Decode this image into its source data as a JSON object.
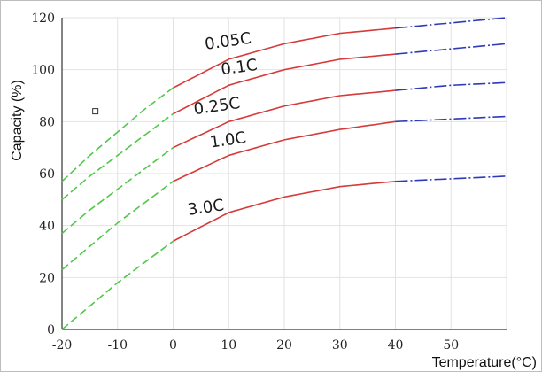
{
  "chart_data": {
    "type": "line",
    "title": "",
    "xlabel": "Temperature(°C)",
    "ylabel": "Capacity (%)",
    "xlim": [
      -20,
      60
    ],
    "ylim": [
      0,
      120
    ],
    "x_ticks": [
      "-20",
      "-10",
      "0",
      "10",
      "20",
      "30",
      "40",
      "50"
    ],
    "y_ticks": [
      "0",
      "20",
      "40",
      "60",
      "80",
      "100",
      "120"
    ],
    "grid": true,
    "segment_colors": {
      "cold": "#52c84a",
      "mid": "#d63a3a",
      "warm": "#2e3ab8"
    },
    "series": [
      {
        "name": "0.05C",
        "x": [
          -20,
          -15,
          -10,
          -5,
          0,
          10,
          20,
          30,
          40,
          50,
          60
        ],
        "y": [
          57,
          67,
          76,
          85,
          93,
          104,
          110,
          114,
          116,
          118,
          120
        ]
      },
      {
        "name": "0.1C",
        "x": [
          -20,
          -15,
          -10,
          -5,
          0,
          10,
          20,
          30,
          40,
          50,
          60
        ],
        "y": [
          50,
          59,
          67,
          75,
          83,
          94,
          100,
          104,
          106,
          108,
          110
        ]
      },
      {
        "name": "0.25C",
        "x": [
          -20,
          -15,
          -10,
          -5,
          0,
          10,
          20,
          30,
          40,
          50,
          60
        ],
        "y": [
          37,
          46,
          54,
          62,
          70,
          80,
          86,
          90,
          92,
          94,
          95
        ]
      },
      {
        "name": "1.0C",
        "x": [
          -20,
          -15,
          -10,
          -5,
          0,
          10,
          20,
          30,
          40,
          50,
          60
        ],
        "y": [
          23,
          32,
          41,
          49,
          57,
          67,
          73,
          77,
          80,
          81,
          82
        ]
      },
      {
        "name": "3.0C",
        "x": [
          -20,
          -15,
          -10,
          -5,
          0,
          10,
          20,
          30,
          40,
          50,
          60
        ],
        "y": [
          0,
          9,
          18,
          26,
          34,
          45,
          51,
          55,
          57,
          58,
          59
        ]
      }
    ],
    "segments_x": {
      "cold_until": 0,
      "warm_from": 40
    }
  }
}
